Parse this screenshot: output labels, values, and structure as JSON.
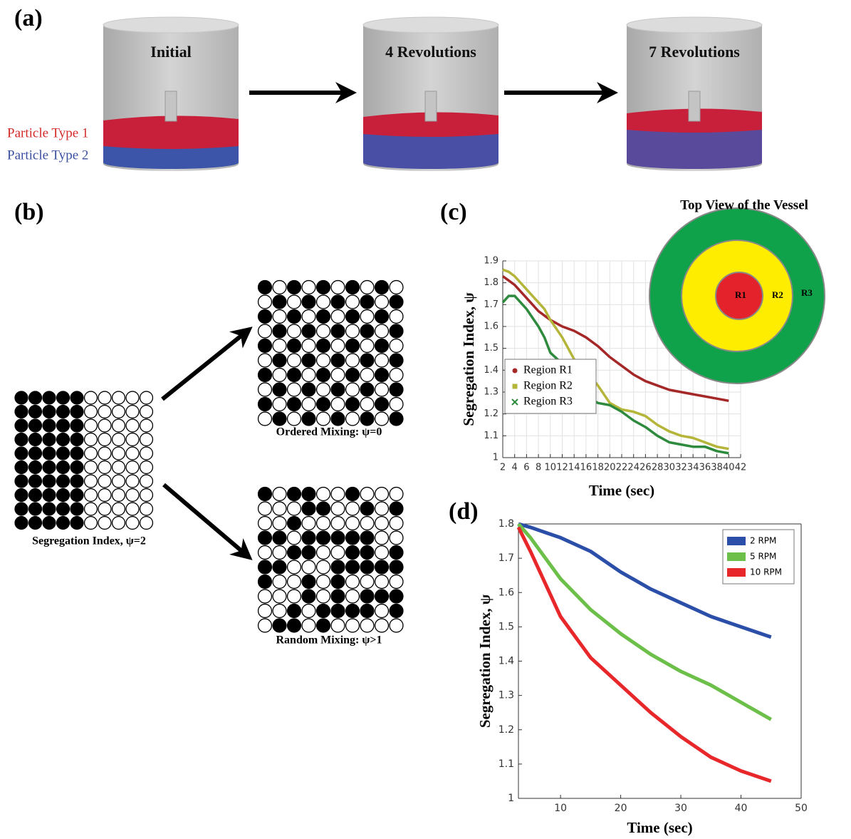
{
  "panel_a": {
    "label": "(a)",
    "stages": [
      "Initial",
      "4 Revolutions",
      "7 Revolutions"
    ],
    "particle_labels": [
      "Particle Type 1",
      "Particle Type 2"
    ]
  },
  "panel_b": {
    "label": "(b)",
    "segregated": "Segregation Index, ψ=2",
    "ordered": "Ordered Mixing: ψ=0",
    "random": "Random Mixing: ψ>1"
  },
  "chart_data": [
    {
      "type": "line",
      "label": "(c)",
      "x_label": "Time (sec)",
      "y_label": "Segregation Index, ψ",
      "inset": {
        "title": "Top View of the Vessel",
        "regions": [
          "R1",
          "R2",
          "R3"
        ]
      },
      "x": [
        2,
        3,
        4,
        6,
        8,
        9,
        10,
        12,
        14,
        16,
        18,
        20,
        22,
        24,
        26,
        28,
        30,
        32,
        34,
        36,
        38,
        40
      ],
      "series": [
        {
          "name": "Region R1",
          "color": "#a52828",
          "marker": "circle",
          "values": [
            1.83,
            1.81,
            1.79,
            1.73,
            1.67,
            1.65,
            1.63,
            1.6,
            1.58,
            1.55,
            1.51,
            1.46,
            1.42,
            1.38,
            1.35,
            1.33,
            1.31,
            1.3,
            1.29,
            1.28,
            1.27,
            1.26
          ]
        },
        {
          "name": "Region R2",
          "color": "#b5b53a",
          "marker": "square",
          "values": [
            1.86,
            1.85,
            1.83,
            1.77,
            1.71,
            1.68,
            1.63,
            1.55,
            1.45,
            1.4,
            1.33,
            1.25,
            1.22,
            1.21,
            1.19,
            1.15,
            1.12,
            1.1,
            1.09,
            1.07,
            1.05,
            1.04
          ]
        },
        {
          "name": "Region R3",
          "color": "#2e8b3e",
          "marker": "x",
          "values": [
            1.71,
            1.74,
            1.74,
            1.68,
            1.6,
            1.55,
            1.48,
            1.43,
            1.36,
            1.28,
            1.25,
            1.24,
            1.21,
            1.17,
            1.14,
            1.1,
            1.07,
            1.06,
            1.05,
            1.05,
            1.03,
            1.02
          ]
        }
      ],
      "xlim": [
        2,
        42
      ],
      "xticks": [
        2,
        4,
        6,
        8,
        10,
        12,
        14,
        16,
        18,
        20,
        22,
        24,
        26,
        28,
        30,
        32,
        34,
        36,
        38,
        40,
        42
      ],
      "ylim": [
        1,
        1.9
      ],
      "yticks": [
        1,
        1.1,
        1.2,
        1.3,
        1.4,
        1.5,
        1.6,
        1.7,
        1.8,
        1.9
      ],
      "grid": true,
      "frame": false,
      "legend": "center left"
    },
    {
      "type": "line",
      "label": "(d)",
      "x_label": "Time (sec)",
      "y_label": "Segregation Index, ψ",
      "x": [
        3,
        5,
        10,
        15,
        20,
        25,
        30,
        35,
        40,
        45
      ],
      "series": [
        {
          "name": "2 RPM",
          "color": "#2b4fa8",
          "values": [
            1.8,
            1.79,
            1.76,
            1.72,
            1.66,
            1.61,
            1.57,
            1.53,
            1.5,
            1.47
          ]
        },
        {
          "name": "5 RPM",
          "color": "#6cc04a",
          "values": [
            1.8,
            1.76,
            1.64,
            1.55,
            1.48,
            1.42,
            1.37,
            1.33,
            1.28,
            1.23
          ]
        },
        {
          "name": "10 RPM",
          "color": "#e8272a",
          "values": [
            1.79,
            1.72,
            1.53,
            1.41,
            1.33,
            1.25,
            1.18,
            1.12,
            1.08,
            1.05
          ]
        }
      ],
      "xlim": [
        3,
        50
      ],
      "xticks": [
        10,
        20,
        30,
        40,
        50
      ],
      "ylim": [
        1,
        1.8
      ],
      "yticks": [
        1,
        1.1,
        1.2,
        1.3,
        1.4,
        1.5,
        1.6,
        1.7,
        1.8
      ],
      "grid": false,
      "frame": true,
      "legend": "upper right"
    }
  ]
}
